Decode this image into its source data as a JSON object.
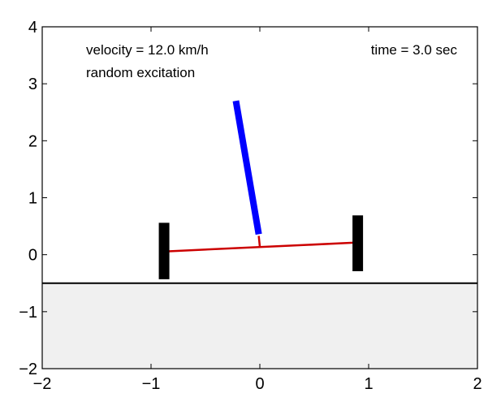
{
  "chart_data": {
    "type": "scatter",
    "title": "",
    "xlabel": "",
    "ylabel": "",
    "xlim": [
      -2,
      2
    ],
    "ylim": [
      -2,
      4
    ],
    "xticks": [
      -2,
      -1,
      0,
      1,
      2
    ],
    "yticks": [
      -2,
      -1,
      0,
      1,
      2,
      3,
      4
    ],
    "xtick_labels": [
      "−2",
      "−1",
      "0",
      "1",
      "2"
    ],
    "ytick_labels": [
      "−2",
      "−1",
      "0",
      "1",
      "2",
      "3",
      "4"
    ],
    "annotations": {
      "velocity": "velocity = 12.0 km/h",
      "excitation": "random excitation",
      "time": "time = 3.0 sec"
    },
    "ground": {
      "level": -0.5,
      "fill_color": "#f0f0f0",
      "line_color": "#000000"
    },
    "left_wheel": {
      "x": -0.88,
      "y_bottom": -0.43,
      "y_top": 0.56,
      "color": "#000000"
    },
    "right_wheel": {
      "x": 0.9,
      "y_bottom": -0.29,
      "y_top": 0.69,
      "color": "#000000"
    },
    "axle": {
      "x": [
        -0.84,
        0.86
      ],
      "y": [
        0.06,
        0.21
      ],
      "color": "#cc0000"
    },
    "pivot_link": {
      "x": [
        0.0,
        -0.01
      ],
      "y": [
        0.14,
        0.33
      ],
      "color": "#cc0000"
    },
    "pendulum": {
      "x": [
        -0.01,
        -0.22
      ],
      "y": [
        0.36,
        2.7
      ],
      "color": "#0000ff"
    }
  }
}
